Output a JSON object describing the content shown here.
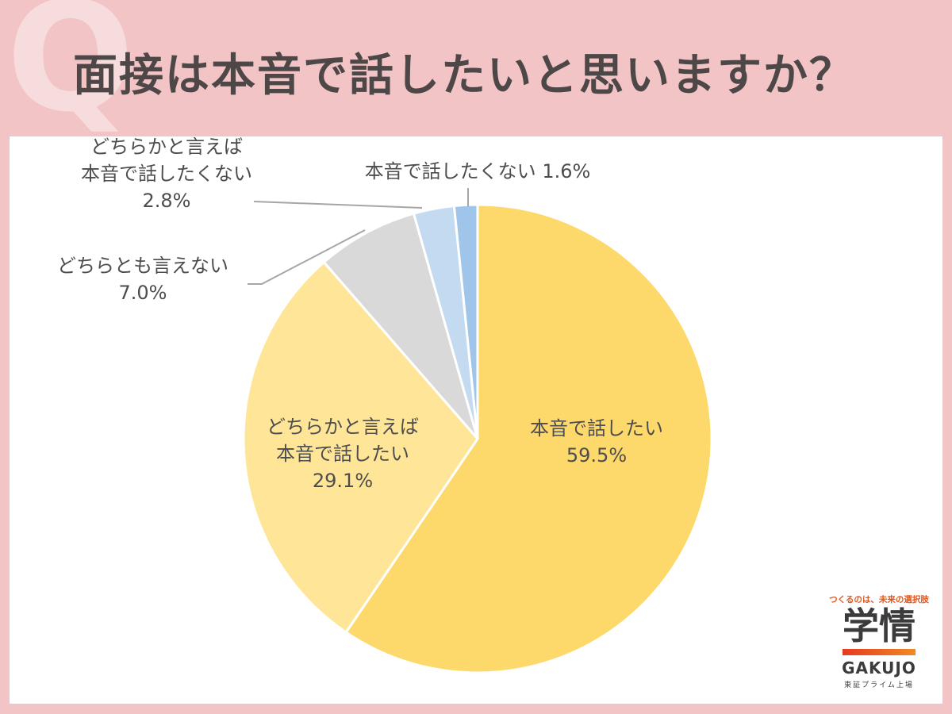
{
  "header": {
    "q_mark": "Q",
    "title": "面接は本音で話したいと思いますか？"
  },
  "chart_data": {
    "type": "pie",
    "title": "面接は本音で話したいと思いますか？",
    "slices": [
      {
        "label_lines": [
          "本音で話したい"
        ],
        "value": 59.5,
        "value_label": "59.5%",
        "color": "#fdd86a"
      },
      {
        "label_lines": [
          "どちらかと言えば",
          "本音で話したい"
        ],
        "value": 29.1,
        "value_label": "29.1%",
        "color": "#fee597"
      },
      {
        "label_lines": [
          "どちらとも言えない"
        ],
        "value": 7.0,
        "value_label": "7.0%",
        "color": "#d9d9d9"
      },
      {
        "label_lines": [
          "どちらかと言えば",
          "本音で話したくない"
        ],
        "value": 2.8,
        "value_label": "2.8%",
        "color": "#c3daf1"
      },
      {
        "label_lines": [
          "本音で話したくない"
        ],
        "value": 1.6,
        "value_label": "1.6%",
        "color": "#9fc5ea"
      }
    ],
    "start": "12 o'clock",
    "direction": "clockwise",
    "legend": "none"
  },
  "logo": {
    "tagline": "つくるのは、未来の選択肢",
    "kanji": "学情",
    "en": "GAKUJO",
    "sub": "東証プライム上場"
  }
}
